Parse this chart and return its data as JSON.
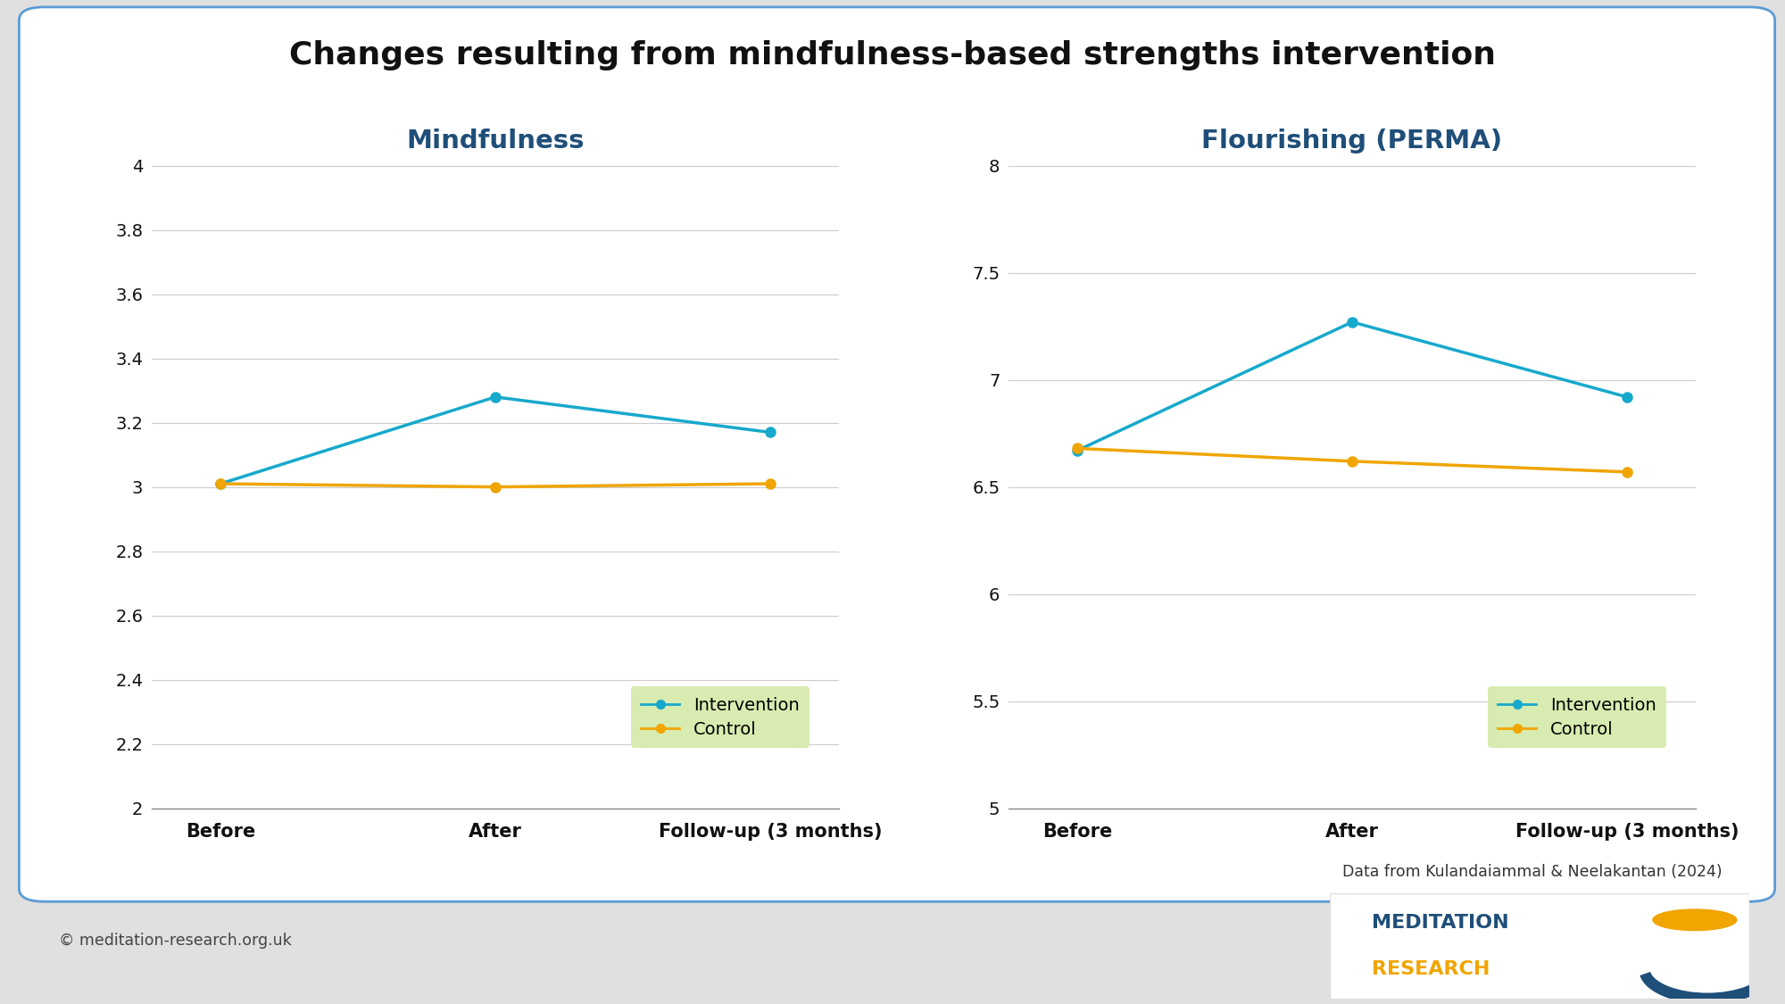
{
  "title": "Changes resulting from mindfulness-based strengths intervention",
  "title_fontsize": 26,
  "background_color": "#e0e0e0",
  "panel_bg": "#ffffff",
  "panel_border_color": "#5b9bd5",
  "left_title": "Mindfulness",
  "right_title": "Flourishing (PERMA)",
  "subtitle_color": "#1f4e79",
  "subtitle_fontsize": 21,
  "x_labels": [
    "Before",
    "After",
    "Follow-up (3 months)"
  ],
  "mindfulness_intervention": [
    3.01,
    3.28,
    3.17
  ],
  "mindfulness_control": [
    3.01,
    3.0,
    3.01
  ],
  "flourishing_intervention": [
    6.67,
    7.27,
    6.92
  ],
  "flourishing_control": [
    6.68,
    6.62,
    6.57
  ],
  "intervention_color": "#17a9cc",
  "control_color": "#f0a500",
  "line_width": 2.5,
  "marker_size": 8,
  "mindfulness_ylim": [
    2.0,
    4.0
  ],
  "mindfulness_yticks": [
    2.0,
    2.2,
    2.4,
    2.6,
    2.8,
    3.0,
    3.2,
    3.4,
    3.6,
    3.8,
    4.0
  ],
  "mindfulness_yticklabels": [
    "2",
    "2.2",
    "2.4",
    "2.6",
    "2.8",
    "3",
    "3.2",
    "3.4",
    "3.6",
    "3.8",
    "4"
  ],
  "flourishing_ylim": [
    5.0,
    8.0
  ],
  "flourishing_yticks": [
    5.0,
    5.5,
    6.0,
    6.5,
    7.0,
    7.5,
    8.0
  ],
  "flourishing_yticklabels": [
    "5",
    "5.5",
    "6",
    "6.5",
    "7",
    "7.5",
    "8"
  ],
  "legend_bg": "#d8ebb0",
  "citation": "Data from Kulandaiammal & Neelakantan (2024)",
  "copyright": "© meditation-research.org.uk",
  "ticker_fontsize": 14,
  "xlabel_fontsize": 15,
  "legend_fontsize": 14,
  "intervention_label": "Intervention",
  "control_label": "Control"
}
